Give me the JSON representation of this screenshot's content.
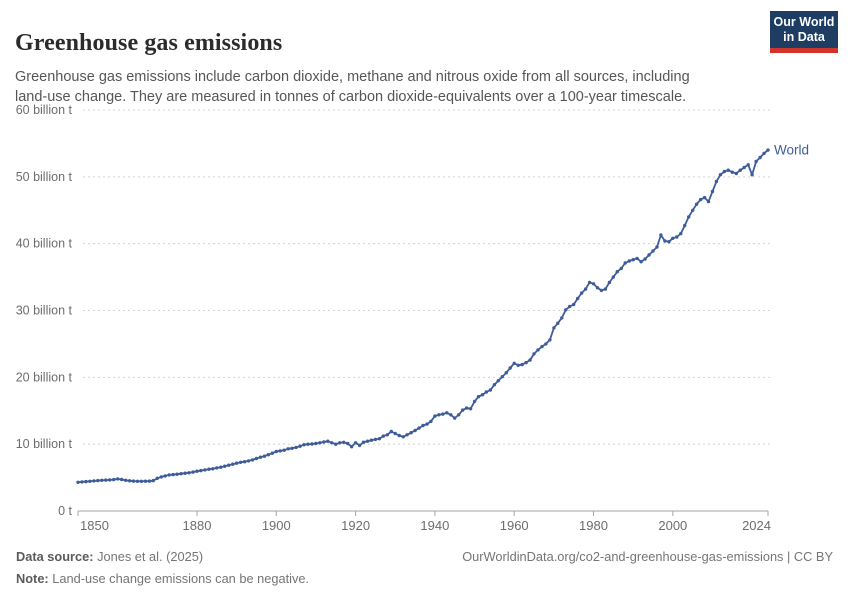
{
  "header": {
    "title": "Greenhouse gas emissions",
    "subtitle": "Greenhouse gas emissions include carbon dioxide, methane and nitrous oxide from all sources, including land-use change. They are measured in tonnes of carbon dioxide-equivalents over a 100-year timescale."
  },
  "logo": {
    "line1": "Our World",
    "line2": "in Data",
    "background_color": "#1d3d63",
    "bar_color": "#d0342c"
  },
  "chart_data": {
    "type": "line",
    "title": "Greenhouse gas emissions",
    "unit": "billion tonnes of CO2-equivalents",
    "xlim": [
      1850,
      2024
    ],
    "ylim": [
      0,
      60
    ],
    "grid": "horizontal dashed",
    "x_ticks": [
      1850,
      1880,
      1900,
      1920,
      1940,
      1960,
      1980,
      2000,
      2024
    ],
    "y_ticks": [
      {
        "value": 0,
        "label": "0 t"
      },
      {
        "value": 10,
        "label": "10 billion t"
      },
      {
        "value": 20,
        "label": "20 billion t"
      },
      {
        "value": 30,
        "label": "30 billion t"
      },
      {
        "value": 40,
        "label": "40 billion t"
      },
      {
        "value": 50,
        "label": "50 billion t"
      },
      {
        "value": 60,
        "label": "60 billion t"
      }
    ],
    "series": [
      {
        "name": "World",
        "color": "#3e5c9a",
        "x_start": 1850,
        "x_step": 1,
        "values": [
          4.3,
          4.35,
          4.4,
          4.45,
          4.5,
          4.55,
          4.6,
          4.62,
          4.65,
          4.7,
          4.8,
          4.72,
          4.6,
          4.52,
          4.48,
          4.45,
          4.45,
          4.46,
          4.48,
          4.55,
          4.9,
          5.1,
          5.25,
          5.4,
          5.45,
          5.5,
          5.58,
          5.65,
          5.72,
          5.82,
          5.95,
          6.05,
          6.15,
          6.25,
          6.32,
          6.45,
          6.55,
          6.7,
          6.85,
          7.0,
          7.15,
          7.28,
          7.38,
          7.5,
          7.65,
          7.85,
          8.05,
          8.2,
          8.42,
          8.65,
          8.9,
          9.0,
          9.1,
          9.3,
          9.38,
          9.52,
          9.7,
          9.92,
          10.0,
          10.02,
          10.1,
          10.2,
          10.32,
          10.45,
          10.2,
          10.0,
          10.2,
          10.28,
          10.1,
          9.62,
          10.2,
          9.82,
          10.3,
          10.45,
          10.6,
          10.72,
          10.82,
          11.2,
          11.4,
          11.9,
          11.6,
          11.3,
          11.1,
          11.4,
          11.72,
          12.05,
          12.4,
          12.8,
          13.0,
          13.4,
          14.2,
          14.4,
          14.5,
          14.7,
          14.4,
          13.9,
          14.4,
          15.1,
          15.4,
          15.3,
          16.4,
          17.1,
          17.4,
          17.8,
          18.1,
          18.9,
          19.5,
          20.1,
          20.7,
          21.4,
          22.1,
          21.8,
          21.9,
          22.2,
          22.6,
          23.5,
          24.1,
          24.6,
          25.0,
          25.6,
          27.4,
          28.1,
          28.9,
          30.1,
          30.6,
          30.9,
          31.8,
          32.6,
          33.2,
          34.2,
          34.0,
          33.4,
          33.0,
          33.2,
          34.2,
          35.0,
          35.8,
          36.3,
          37.1,
          37.4,
          37.6,
          37.8,
          37.3,
          37.7,
          38.3,
          38.9,
          39.5,
          41.3,
          40.4,
          40.3,
          40.8,
          41.0,
          41.5,
          42.7,
          44.0,
          45.0,
          45.9,
          46.6,
          46.9,
          46.3,
          47.8,
          49.3,
          50.3,
          50.8,
          51.0,
          50.7,
          50.5,
          51.0,
          51.4,
          51.8,
          50.3,
          52.3,
          52.9,
          53.5,
          54.0
        ]
      }
    ],
    "series_end_label": "World",
    "colors": {
      "line": "#3e5c9a",
      "grid": "#d4d4d4",
      "axis": "#a5a5a5",
      "tick_text": "#6d6d6d"
    }
  },
  "footer": {
    "data_source_label": "Data source:",
    "data_source_value": "Jones et al. (2025)",
    "url": "OurWorldinData.org/co2-and-greenhouse-gas-emissions",
    "separator": " | ",
    "license": "CC BY",
    "note_label": "Note:",
    "note_value": "Land-use change emissions can be negative."
  }
}
